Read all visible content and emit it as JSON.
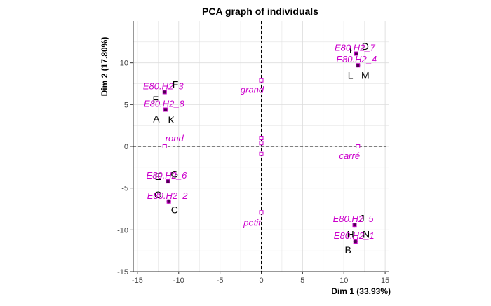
{
  "chart_data": {
    "type": "scatter",
    "title": "PCA graph of individuals",
    "xlabel": "Dim 1 (33.93%)",
    "ylabel": "Dim 2 (17.80%)",
    "xlim": [
      -15.5,
      15.5
    ],
    "ylim": [
      -15,
      15
    ],
    "xticks": [
      -15,
      -10,
      -5,
      0,
      5,
      10,
      15
    ],
    "yticks": [
      -15,
      -10,
      -5,
      0,
      5,
      10
    ],
    "grid": true,
    "colors": {
      "individual": "#000000",
      "supplementary": "#cc00cc",
      "marker_fill": "#4b0050",
      "grid": "#dddddd",
      "axis": "#333333"
    },
    "individual_points": [
      {
        "x": 11.5,
        "y": 11.1
      },
      {
        "x": 11.7,
        "y": 9.7
      },
      {
        "x": -11.7,
        "y": 6.5
      },
      {
        "x": -11.6,
        "y": 4.4
      },
      {
        "x": -11.3,
        "y": -4.2
      },
      {
        "x": -11.2,
        "y": -6.6
      },
      {
        "x": 11.3,
        "y": -9.4
      },
      {
        "x": 11.4,
        "y": -11.4
      }
    ],
    "individual_labels": [
      {
        "text": "D",
        "x": 12.6,
        "y": 12.0
      },
      {
        "text": "I",
        "x": 10.8,
        "y": 11.6
      },
      {
        "text": "L",
        "x": 10.8,
        "y": 8.5
      },
      {
        "text": "M",
        "x": 12.6,
        "y": 8.5
      },
      {
        "text": "F",
        "x": -10.4,
        "y": 7.4
      },
      {
        "text": "F",
        "x": -12.8,
        "y": 5.6
      },
      {
        "text": "A",
        "x": -12.7,
        "y": 3.3
      },
      {
        "text": "K",
        "x": -10.9,
        "y": 3.2
      },
      {
        "text": "E",
        "x": -12.5,
        "y": -3.6
      },
      {
        "text": "G",
        "x": -10.5,
        "y": -3.3
      },
      {
        "text": "O",
        "x": -12.5,
        "y": -5.8
      },
      {
        "text": "C",
        "x": -10.5,
        "y": -7.6
      },
      {
        "text": "J",
        "x": 12.2,
        "y": -8.6
      },
      {
        "text": "H",
        "x": 10.8,
        "y": -10.5
      },
      {
        "text": "N",
        "x": 12.7,
        "y": -10.5
      },
      {
        "text": "B",
        "x": 10.5,
        "y": -12.4
      }
    ],
    "supplementary_individuals": [
      {
        "label": "E80.H2_7",
        "x": 11.5,
        "y": 11.1
      },
      {
        "label": "E80.H2_4",
        "x": 11.7,
        "y": 9.7
      },
      {
        "label": "E80.H2_3",
        "x": -11.7,
        "y": 6.5
      },
      {
        "label": "E80.H2_8",
        "x": -11.6,
        "y": 4.4
      },
      {
        "label": "E80.H2_6",
        "x": -11.3,
        "y": -4.2
      },
      {
        "label": "E80.H2_2",
        "x": -11.2,
        "y": -6.6
      },
      {
        "label": "E80.H2_5",
        "x": 11.3,
        "y": -9.4
      },
      {
        "label": "E80.H2_1",
        "x": 11.4,
        "y": -11.4
      }
    ],
    "supplementary_categories": [
      {
        "label": "grand",
        "x": 0,
        "y": 7.9
      },
      {
        "label": "petit",
        "x": 0,
        "y": -7.9
      },
      {
        "label": "rond",
        "x": -11.7,
        "y": 0
      },
      {
        "label": "carré",
        "x": 11.7,
        "y": 0
      },
      {
        "label": "",
        "x": 0,
        "y": 1.0
      },
      {
        "label": "",
        "x": 0,
        "y": 0.4
      },
      {
        "label": "",
        "x": 0,
        "y": -0.9
      }
    ]
  }
}
